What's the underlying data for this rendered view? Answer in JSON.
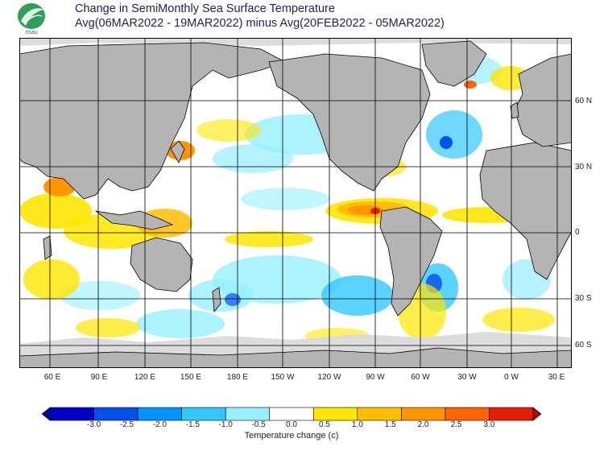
{
  "header": {
    "title_line1": "Change in SemiMonthly Sea Surface Temperature",
    "title_line2": "Avg(06MAR2022 - 19MAR2022) minus Avg(20FEB2022 - 05MAR2022)",
    "logo_text": "nsau"
  },
  "map": {
    "lat_labels": [
      "60 N",
      "30 N",
      "0",
      "30 S",
      "60 S"
    ],
    "lon_labels": [
      "60 E",
      "90 E",
      "120 E",
      "150 E",
      "180 E",
      "150 W",
      "120 W",
      "90 W",
      "60 W",
      "30 W",
      "0 W",
      "30 E"
    ],
    "colors": {
      "land": "#b4b4b4",
      "ice": "#dcdcdc",
      "ocean": "#ffffff",
      "grid": "#000000"
    }
  },
  "legend": {
    "title": "Temperature change  (c)",
    "tick_labels": [
      "-3.0",
      "-2.5",
      "-2.0",
      "-1.5",
      "-1.0",
      "-0.5",
      "0.0",
      "0.5",
      "1.0",
      "1.5",
      "2.0",
      "2.5",
      "3.0"
    ],
    "colors": [
      "#0a0a78",
      "#0000c8",
      "#0050f0",
      "#0096ff",
      "#32c8ff",
      "#96f0ff",
      "#ffffff",
      "#ffe600",
      "#ffbe00",
      "#ff9600",
      "#ff6400",
      "#e61e00",
      "#b40000"
    ]
  }
}
